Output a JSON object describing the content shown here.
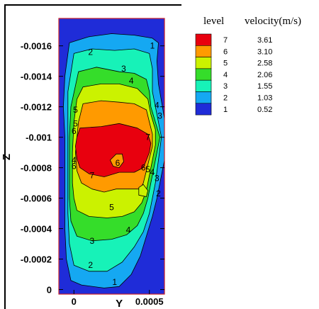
{
  "chart_data": {
    "type": "heatmap",
    "subtype": "filled-contour",
    "xlabel": "Y",
    "ylabel": "Z",
    "x_ticks": [
      {
        "value": 0,
        "label": "0"
      },
      {
        "value": 0.0005,
        "label": "0.0005"
      }
    ],
    "y_ticks": [
      {
        "value": 0,
        "label": "0"
      },
      {
        "value": 0.0002,
        "label": "-0.0002"
      },
      {
        "value": 0.0004,
        "label": "-0.0004"
      },
      {
        "value": 0.0006,
        "label": "-0.0006"
      },
      {
        "value": 0.0008,
        "label": "-0.0008"
      },
      {
        "value": 0.001,
        "label": "-0.001"
      },
      {
        "value": 0.0012,
        "label": "-0.0012"
      },
      {
        "value": 0.0014,
        "label": "-0.0014"
      },
      {
        "value": 0.0016,
        "label": "-0.0016"
      }
    ],
    "xlim": [
      -0.0001,
      0.0006
    ],
    "ylim": [
      -3e-05,
      0.00178
    ],
    "legend": {
      "position": "top-right",
      "level_header": "level",
      "value_header": "velocity(m/s)",
      "entries": [
        {
          "level": "7",
          "value": "3.61",
          "color": "#e8000e"
        },
        {
          "level": "6",
          "value": "3.10",
          "color": "#ff9a00"
        },
        {
          "level": "5",
          "value": "2.58",
          "color": "#cbf200"
        },
        {
          "level": "4",
          "value": "2.06",
          "color": "#35dd2a"
        },
        {
          "level": "3",
          "value": "1.55",
          "color": "#17f2b8"
        },
        {
          "level": "2",
          "value": "1.03",
          "color": "#15a8f2"
        },
        {
          "level": "1",
          "value": "0.52",
          "color": "#1f2cd8"
        }
      ]
    },
    "background_color": "#1f2cd8",
    "contours": [
      {
        "level": 1,
        "color": "#15a8f2",
        "points": [
          [
            -3e-05,
            0.00162
          ],
          [
            0.0001,
            0.00166
          ],
          [
            0.00025,
            0.00168
          ],
          [
            0.0004,
            0.00167
          ],
          [
            0.00052,
            0.00165
          ],
          [
            0.00056,
            0.00162
          ],
          [
            0.00055,
            0.0015
          ],
          [
            0.00056,
            0.00135
          ],
          [
            0.00059,
            0.00118
          ],
          [
            0.00062,
            0.001
          ],
          [
            0.0006,
            0.00085
          ],
          [
            0.00057,
            0.0007
          ],
          [
            0.00055,
            0.0006
          ],
          [
            0.00052,
            0.00048
          ],
          [
            0.00048,
            0.00035
          ],
          [
            0.00044,
            0.00022
          ],
          [
            0.00038,
            0.0001
          ],
          [
            0.0003,
            2e-05
          ],
          [
            0.0002,
            1e-05
          ],
          [
            5e-05,
            3e-05
          ],
          [
            -2e-05,
            6e-05
          ],
          [
            -5e-05,
            0.0002
          ],
          [
            -6e-05,
            0.0004
          ],
          [
            -6e-05,
            0.0006
          ],
          [
            -6e-05,
            0.0008
          ],
          [
            -6e-05,
            0.001
          ],
          [
            -7e-05,
            0.0012
          ],
          [
            -6e-05,
            0.0014
          ]
        ]
      },
      {
        "level": 2,
        "color": "#17f2b8",
        "points": [
          [
            0.0,
            0.00155
          ],
          [
            0.00012,
            0.00158
          ],
          [
            0.00027,
            0.00157
          ],
          [
            0.0004,
            0.00158
          ],
          [
            0.0005,
            0.00155
          ],
          [
            0.00052,
            0.00145
          ],
          [
            0.00052,
            0.0013
          ],
          [
            0.00055,
            0.00115
          ],
          [
            0.00058,
            0.001
          ],
          [
            0.00056,
            0.00085
          ],
          [
            0.00054,
            0.0007
          ],
          [
            0.00052,
            0.0006
          ],
          [
            0.0005,
            0.0005
          ],
          [
            0.00046,
            0.00038
          ],
          [
            0.0004,
            0.00028
          ],
          [
            0.00032,
            0.00018
          ],
          [
            0.00022,
            0.00012
          ],
          [
            0.0001,
            0.00012
          ],
          [
            0.0,
            0.00016
          ],
          [
            -3e-05,
            0.0003
          ],
          [
            -4e-05,
            0.0005
          ],
          [
            -4e-05,
            0.0007
          ],
          [
            -4e-05,
            0.0009
          ],
          [
            -4e-05,
            0.0011
          ],
          [
            -4e-05,
            0.0013
          ]
        ]
      },
      {
        "level": 3,
        "color": "#35dd2a",
        "points": [
          [
            3e-05,
            0.00143
          ],
          [
            0.00015,
            0.00146
          ],
          [
            0.0003,
            0.00143
          ],
          [
            0.0004,
            0.00142
          ],
          [
            0.00048,
            0.00138
          ],
          [
            0.0005,
            0.0013
          ],
          [
            0.00051,
            0.0012
          ],
          [
            0.00054,
            0.0011
          ],
          [
            0.00057,
            0.001
          ],
          [
            0.00055,
            0.0009
          ],
          [
            0.00053,
            0.0008
          ],
          [
            0.00051,
            0.0007
          ],
          [
            0.00049,
            0.0006
          ],
          [
            0.00046,
            0.0005
          ],
          [
            0.00042,
            0.00042
          ],
          [
            0.00035,
            0.00036
          ],
          [
            0.00025,
            0.00033
          ],
          [
            0.00012,
            0.00032
          ],
          [
            2e-05,
            0.00035
          ],
          [
            -2e-05,
            0.00045
          ],
          [
            -3e-05,
            0.0006
          ],
          [
            -3e-05,
            0.0008
          ],
          [
            -3e-05,
            0.001
          ],
          [
            -2e-05,
            0.0012
          ]
        ]
      },
      {
        "level": 4,
        "color": "#cbf200",
        "points": [
          [
            6e-05,
            0.00133
          ],
          [
            0.00018,
            0.00135
          ],
          [
            0.0003,
            0.00135
          ],
          [
            0.00042,
            0.00132
          ],
          [
            0.00049,
            0.00125
          ],
          [
            0.00051,
            0.00115
          ],
          [
            0.00054,
            0.00105
          ],
          [
            0.00054,
            0.00095
          ],
          [
            0.00052,
            0.00085
          ],
          [
            0.0005,
            0.00075
          ],
          [
            0.00048,
            0.00065
          ],
          [
            0.00045,
            0.00057
          ],
          [
            0.0004,
            0.00051
          ],
          [
            0.00032,
            0.00048
          ],
          [
            0.00022,
            0.00047
          ],
          [
            0.0001,
            0.00048
          ],
          [
            2e-05,
            0.00052
          ],
          [
            0.0,
            0.0006
          ],
          [
            -1e-05,
            0.0007
          ],
          [
            -1e-05,
            0.0009
          ],
          [
            0.0,
            0.0011
          ],
          [
            2e-05,
            0.00125
          ]
        ]
      },
      {
        "level": 5,
        "color": "#ff9a00",
        "points": [
          [
            6e-05,
            0.00122
          ],
          [
            0.00018,
            0.00124
          ],
          [
            0.0003,
            0.00123
          ],
          [
            0.0004,
            0.00122
          ],
          [
            0.00048,
            0.00118
          ],
          [
            0.0005,
            0.0011
          ],
          [
            0.00052,
            0.00102
          ],
          [
            0.00052,
            0.00094
          ],
          [
            0.0005,
            0.00086
          ],
          [
            0.00048,
            0.00078
          ],
          [
            0.00046,
            0.0007
          ],
          [
            0.00044,
            0.00066
          ],
          [
            0.00036,
            0.00066
          ],
          [
            0.00028,
            0.00066
          ],
          [
            0.0002,
            0.00064
          ],
          [
            0.00012,
            0.00066
          ],
          [
            5e-05,
            0.0007
          ],
          [
            2e-05,
            0.00078
          ],
          [
            1e-05,
            0.0009
          ],
          [
            2e-05,
            0.001
          ],
          [
            3e-05,
            0.0011
          ]
        ]
      },
      {
        "level": 6,
        "color": "#e8000e",
        "points": [
          [
            4e-05,
            0.00106
          ],
          [
            0.00018,
            0.00107
          ],
          [
            0.0003,
            0.00109
          ],
          [
            0.00042,
            0.00106
          ],
          [
            0.00049,
            0.00102
          ],
          [
            0.00051,
            0.00096
          ],
          [
            0.0005,
            0.0009
          ],
          [
            0.00048,
            0.00085
          ],
          [
            0.00046,
            0.0008
          ],
          [
            0.0004,
            0.00077
          ],
          [
            0.0003,
            0.00077
          ],
          [
            0.0002,
            0.00074
          ],
          [
            0.0001,
            0.00076
          ],
          [
            4e-05,
            0.0008
          ],
          [
            2e-05,
            0.00086
          ],
          [
            1e-05,
            0.00094
          ],
          [
            2e-05,
            0.001
          ]
        ]
      }
    ],
    "holes": [
      {
        "color": "#ff9a00",
        "points": [
          [
            0.00024,
            0.00085
          ],
          [
            0.00028,
            0.00089
          ],
          [
            0.00032,
            0.00089
          ],
          [
            0.00033,
            0.00084
          ],
          [
            0.0003,
            0.0008
          ],
          [
            0.00026,
            0.00081
          ]
        ]
      },
      {
        "color": "#cbf200",
        "points": [
          [
            0.00043,
            0.00062
          ],
          [
            0.00048,
            0.00061
          ],
          [
            0.00049,
            0.00065
          ],
          [
            0.00046,
            0.00069
          ],
          [
            0.00043,
            0.00067
          ]
        ]
      }
    ],
    "contour_labels": [
      {
        "text": "2",
        "x": 0.00011,
        "y": 0.00156
      },
      {
        "text": "3",
        "x": 0.00033,
        "y": 0.00145
      },
      {
        "text": "4",
        "x": 0.00038,
        "y": 0.00137
      },
      {
        "text": "1",
        "x": 0.00052,
        "y": 0.0016
      },
      {
        "text": "5",
        "x": 1e-05,
        "y": 0.00118
      },
      {
        "text": "5",
        "x": 1e-05,
        "y": 0.00109
      },
      {
        "text": "6",
        "x": 0.0,
        "y": 0.00104
      },
      {
        "text": "4",
        "x": 0.00055,
        "y": 0.00121
      },
      {
        "text": "3",
        "x": 0.00057,
        "y": 0.00114
      },
      {
        "text": "7",
        "x": 0.00049,
        "y": 0.001
      },
      {
        "text": "6",
        "x": 0.00029,
        "y": 0.00083
      },
      {
        "text": "6",
        "x": 0.00046,
        "y": 0.0008
      },
      {
        "text": "5",
        "x": 0.00049,
        "y": 0.00079
      },
      {
        "text": "4",
        "x": 0.00052,
        "y": 0.00077
      },
      {
        "text": "3",
        "x": 0.00055,
        "y": 0.00073
      },
      {
        "text": "7",
        "x": 0.00012,
        "y": 0.00075
      },
      {
        "text": "4",
        "x": 0.0,
        "y": 0.00085
      },
      {
        "text": "6",
        "x": 0.0,
        "y": 0.00081
      },
      {
        "text": "2",
        "x": 0.00056,
        "y": 0.00063
      },
      {
        "text": "5",
        "x": 0.00025,
        "y": 0.00054
      },
      {
        "text": "4",
        "x": 0.00036,
        "y": 0.00039
      },
      {
        "text": "3",
        "x": 0.00012,
        "y": 0.00032
      },
      {
        "text": "2",
        "x": 0.00011,
        "y": 0.00016
      },
      {
        "text": "1",
        "x": 0.00027,
        "y": 5e-05
      }
    ]
  }
}
